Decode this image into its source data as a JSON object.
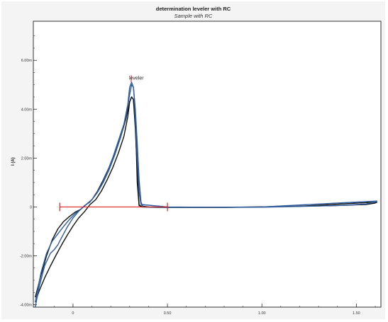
{
  "chart_data": {
    "type": "line",
    "title": "determination leveler with RC",
    "subtitle": "Sample with RC",
    "xlabel": "",
    "ylabel": "I (A)",
    "xlim": [
      -0.21,
      1.63
    ],
    "ylim": [
      -0.0041,
      0.0076
    ],
    "x_ticks": [
      0,
      0.5,
      1.0,
      1.5
    ],
    "x_tick_labels": [
      "0",
      "0.50",
      "1.00",
      "1.50"
    ],
    "y_ticks": [
      -0.004,
      -0.002,
      0,
      0.002,
      0.004,
      0.006
    ],
    "y_tick_labels": [
      "-4.00m",
      "-2.00m",
      "0",
      "2.00m",
      "4.00m",
      "6.00m"
    ],
    "grid": false,
    "colors": {
      "black_series": "#111111",
      "blue_series": "#2e5c9c",
      "marker": "#e02020"
    },
    "series": [
      {
        "color": "#111111",
        "x": [
          -0.2,
          -0.18,
          -0.15,
          -0.12,
          -0.09,
          -0.06,
          -0.03,
          0.0,
          0.03,
          0.06,
          0.09,
          0.12,
          0.15,
          0.18,
          0.21,
          0.24,
          0.27,
          0.29,
          0.3,
          0.31,
          0.32,
          0.33,
          0.335,
          0.34,
          0.35,
          0.4,
          0.5,
          0.8,
          1.0,
          1.2,
          1.4,
          1.55,
          1.6,
          1.61
        ],
        "y": [
          -0.0039,
          -0.00345,
          -0.0029,
          -0.00242,
          -0.00197,
          -0.00155,
          -0.00115,
          -0.00078,
          -0.00045,
          -0.0002,
          0.0001,
          0.0003,
          0.00065,
          0.0011,
          0.0016,
          0.0022,
          0.0029,
          0.0037,
          0.0043,
          0.0045,
          0.0044,
          0.0036,
          0.0024,
          0.001,
          5e-05,
          0.0,
          -2e-05,
          -2e-05,
          0.0,
          3e-05,
          6e-05,
          0.0001,
          0.00016,
          0.0002
        ]
      },
      {
        "color": "#111111",
        "x": [
          -0.2,
          -0.17,
          -0.14,
          -0.11,
          -0.08,
          -0.05,
          -0.02,
          0.01,
          0.04,
          0.07,
          0.1,
          0.13,
          0.16,
          0.19,
          0.22,
          0.25,
          0.28,
          0.3,
          0.31,
          0.32,
          0.33,
          0.34,
          0.345,
          0.35,
          0.36,
          0.45,
          0.8,
          1.2,
          1.61
        ],
        "y": [
          -0.0037,
          -0.0028,
          -0.002,
          -0.00135,
          -0.0009,
          -0.0006,
          -0.0004,
          -0.00022,
          -0.0001,
          0.0001,
          0.0003,
          0.00065,
          0.0011,
          0.0016,
          0.0022,
          0.0028,
          0.0036,
          0.0043,
          0.0045,
          0.0044,
          0.0032,
          0.0016,
          0.0006,
          0.0001,
          0.0,
          -2e-05,
          -2e-05,
          3e-05,
          0.0002
        ]
      },
      {
        "color": "#2e5c9c",
        "x": [
          -0.2,
          -0.18,
          -0.15,
          -0.12,
          -0.1,
          -0.08,
          -0.06,
          -0.03,
          0.0,
          0.03,
          0.06,
          0.09,
          0.12,
          0.15,
          0.18,
          0.21,
          0.24,
          0.27,
          0.29,
          0.3,
          0.31,
          0.32,
          0.325,
          0.33,
          0.34,
          0.35,
          0.36,
          0.5,
          0.8,
          1.0,
          1.2,
          1.4,
          1.55,
          1.6,
          1.61
        ],
        "y": [
          -0.0041,
          -0.0033,
          -0.0024,
          -0.0019,
          -0.00175,
          -0.00155,
          -0.00125,
          -0.00082,
          -0.00045,
          -0.00018,
          5e-05,
          0.0002,
          0.0005,
          0.0009,
          0.0014,
          0.002,
          0.0027,
          0.0034,
          0.0042,
          0.0049,
          0.0051,
          0.0049,
          0.0044,
          0.0036,
          0.002,
          0.0006,
          0.0001,
          0.0,
          -2e-05,
          -1e-05,
          2e-05,
          6e-05,
          0.00012,
          0.0002,
          0.00025
        ]
      },
      {
        "color": "#2e5c9c",
        "x": [
          -0.2,
          -0.17,
          -0.14,
          -0.11,
          -0.08,
          -0.05,
          -0.02,
          0.01,
          0.04,
          0.07,
          0.1,
          0.13,
          0.16,
          0.19,
          0.22,
          0.25,
          0.28,
          0.3,
          0.31,
          0.32,
          0.33,
          0.34,
          0.35,
          0.36,
          0.37,
          0.6,
          1.0,
          1.61
        ],
        "y": [
          -0.0039,
          -0.0027,
          -0.0019,
          -0.0014,
          -0.0011,
          -0.0008,
          -0.00052,
          -0.00028,
          -0.0001,
          0.0001,
          0.0003,
          0.0006,
          0.001,
          0.0015,
          0.0021,
          0.0028,
          0.0037,
          0.0046,
          0.005,
          0.0049,
          0.004,
          0.0026,
          0.0011,
          0.0002,
          0.0,
          -2e-05,
          0.0,
          0.00024
        ]
      }
    ],
    "annotations": [
      {
        "type": "peak-marker",
        "label": "leveler",
        "x": 0.308,
        "y": 0.0051
      },
      {
        "type": "baseline",
        "x_start": -0.07,
        "x_end": 0.5,
        "y": 0.0
      }
    ]
  }
}
